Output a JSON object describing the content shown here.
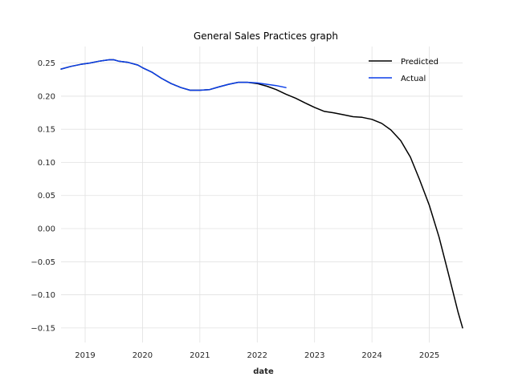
{
  "chart_data": {
    "type": "line",
    "title": "General Sales Practices graph",
    "xlabel": "date",
    "ylabel": "",
    "xlim": [
      2018.58,
      2025.58
    ],
    "ylim": [
      -0.172,
      0.275
    ],
    "grid": true,
    "legend_position": "top-right",
    "x_ticks": [
      2019,
      2020,
      2021,
      2022,
      2023,
      2024,
      2025
    ],
    "x_tick_labels": [
      "2019",
      "2020",
      "2021",
      "2022",
      "2023",
      "2024",
      "2025"
    ],
    "y_ticks": [
      0.25,
      0.2,
      0.15,
      0.1,
      0.05,
      0.0,
      -0.05,
      -0.1,
      -0.15
    ],
    "y_tick_labels": [
      "0.25",
      "0.20",
      "0.15",
      "0.10",
      "0.05",
      "0.00",
      "−0.05",
      "−0.10",
      "−0.15"
    ],
    "series": [
      {
        "name": "Predicted",
        "color": "#000000",
        "x": [
          2018.58,
          2018.75,
          2018.92,
          2019.08,
          2019.25,
          2019.42,
          2019.5,
          2019.58,
          2019.75,
          2019.92,
          2020.0,
          2020.17,
          2020.33,
          2020.5,
          2020.67,
          2020.83,
          2020.92,
          2021.0,
          2021.17,
          2021.33,
          2021.5,
          2021.67,
          2021.83,
          2022.0,
          2022.17,
          2022.33,
          2022.5,
          2022.67,
          2022.83,
          2023.0,
          2023.17,
          2023.33,
          2023.5,
          2023.67,
          2023.83,
          2024.0,
          2024.17,
          2024.33,
          2024.5,
          2024.67,
          2024.83,
          2025.0,
          2025.17,
          2025.33,
          2025.5,
          2025.58
        ],
        "y": [
          0.241,
          0.245,
          0.248,
          0.25,
          0.253,
          0.255,
          0.255,
          0.253,
          0.251,
          0.247,
          0.243,
          0.236,
          0.227,
          0.219,
          0.213,
          0.209,
          0.209,
          0.209,
          0.21,
          0.214,
          0.218,
          0.221,
          0.221,
          0.219,
          0.215,
          0.21,
          0.203,
          0.197,
          0.19,
          0.183,
          0.177,
          0.175,
          0.172,
          0.169,
          0.168,
          0.165,
          0.159,
          0.149,
          0.133,
          0.108,
          0.074,
          0.035,
          -0.013,
          -0.067,
          -0.126,
          -0.15
        ]
      },
      {
        "name": "Actual",
        "color": "#0b3fe8",
        "x": [
          2018.58,
          2018.75,
          2018.92,
          2019.08,
          2019.25,
          2019.42,
          2019.5,
          2019.58,
          2019.75,
          2019.92,
          2020.0,
          2020.17,
          2020.33,
          2020.5,
          2020.67,
          2020.83,
          2020.92,
          2021.0,
          2021.17,
          2021.33,
          2021.5,
          2021.67,
          2021.83,
          2022.0,
          2022.17,
          2022.33,
          2022.5
        ],
        "y": [
          0.241,
          0.245,
          0.248,
          0.25,
          0.253,
          0.255,
          0.255,
          0.253,
          0.251,
          0.247,
          0.243,
          0.236,
          0.227,
          0.219,
          0.213,
          0.209,
          0.209,
          0.209,
          0.21,
          0.214,
          0.218,
          0.221,
          0.221,
          0.22,
          0.218,
          0.216,
          0.213
        ]
      }
    ]
  }
}
